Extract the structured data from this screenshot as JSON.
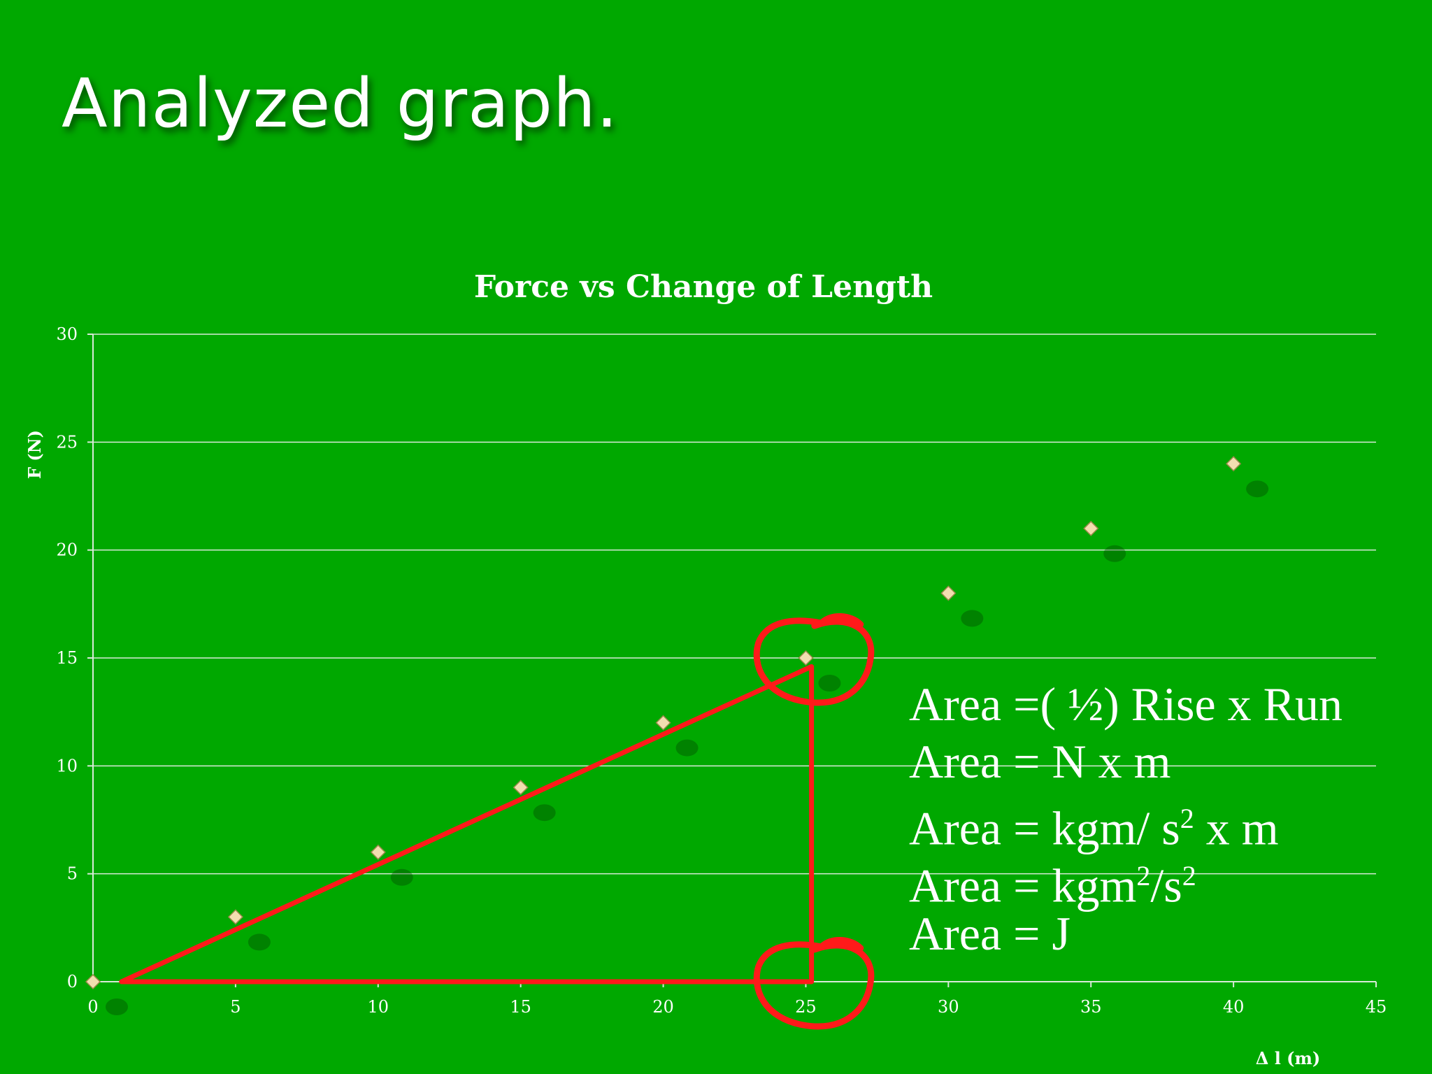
{
  "slide": {
    "title": "Analyzed graph."
  },
  "chart_data": {
    "type": "scatter",
    "title": "Force vs Change of Length",
    "xlabel": "Δ l (m)",
    "ylabel": "F (N)",
    "xlim": [
      0,
      45
    ],
    "ylim": [
      0,
      30
    ],
    "xticks": [
      0,
      5,
      10,
      15,
      20,
      25,
      30,
      35,
      40,
      45
    ],
    "yticks": [
      0,
      5,
      10,
      15,
      20,
      25,
      30
    ],
    "grid": "horizontal",
    "marker": "diamond",
    "marker_color": "#f2deb0",
    "points": [
      {
        "x": 0,
        "y": 0
      },
      {
        "x": 5,
        "y": 3
      },
      {
        "x": 10,
        "y": 6
      },
      {
        "x": 15,
        "y": 9
      },
      {
        "x": 20,
        "y": 12
      },
      {
        "x": 25,
        "y": 15
      },
      {
        "x": 30,
        "y": 18
      },
      {
        "x": 35,
        "y": 21
      },
      {
        "x": 40,
        "y": 24
      }
    ],
    "annotation": {
      "color": "#ff1a1a",
      "triangle_vertices": [
        {
          "x": 1,
          "y": 0
        },
        {
          "x": 25.2,
          "y": 14.6
        },
        {
          "x": 25.2,
          "y": 0
        }
      ],
      "circles_at": [
        {
          "x": 25.5,
          "y": 15
        },
        {
          "x": 25.5,
          "y": 0
        }
      ]
    }
  },
  "derivation": {
    "line1": "Area =( ½) Rise x Run",
    "line2": "Area =  N x m",
    "line3_main": "Area = kgm/ s",
    "line3_sup": "2",
    "line3_tail": " x m",
    "line4_main": "Area = kgm",
    "line4_sup1": "2",
    "line4_mid": "/s",
    "line4_sup2": "2",
    "line5": "Area = J"
  }
}
